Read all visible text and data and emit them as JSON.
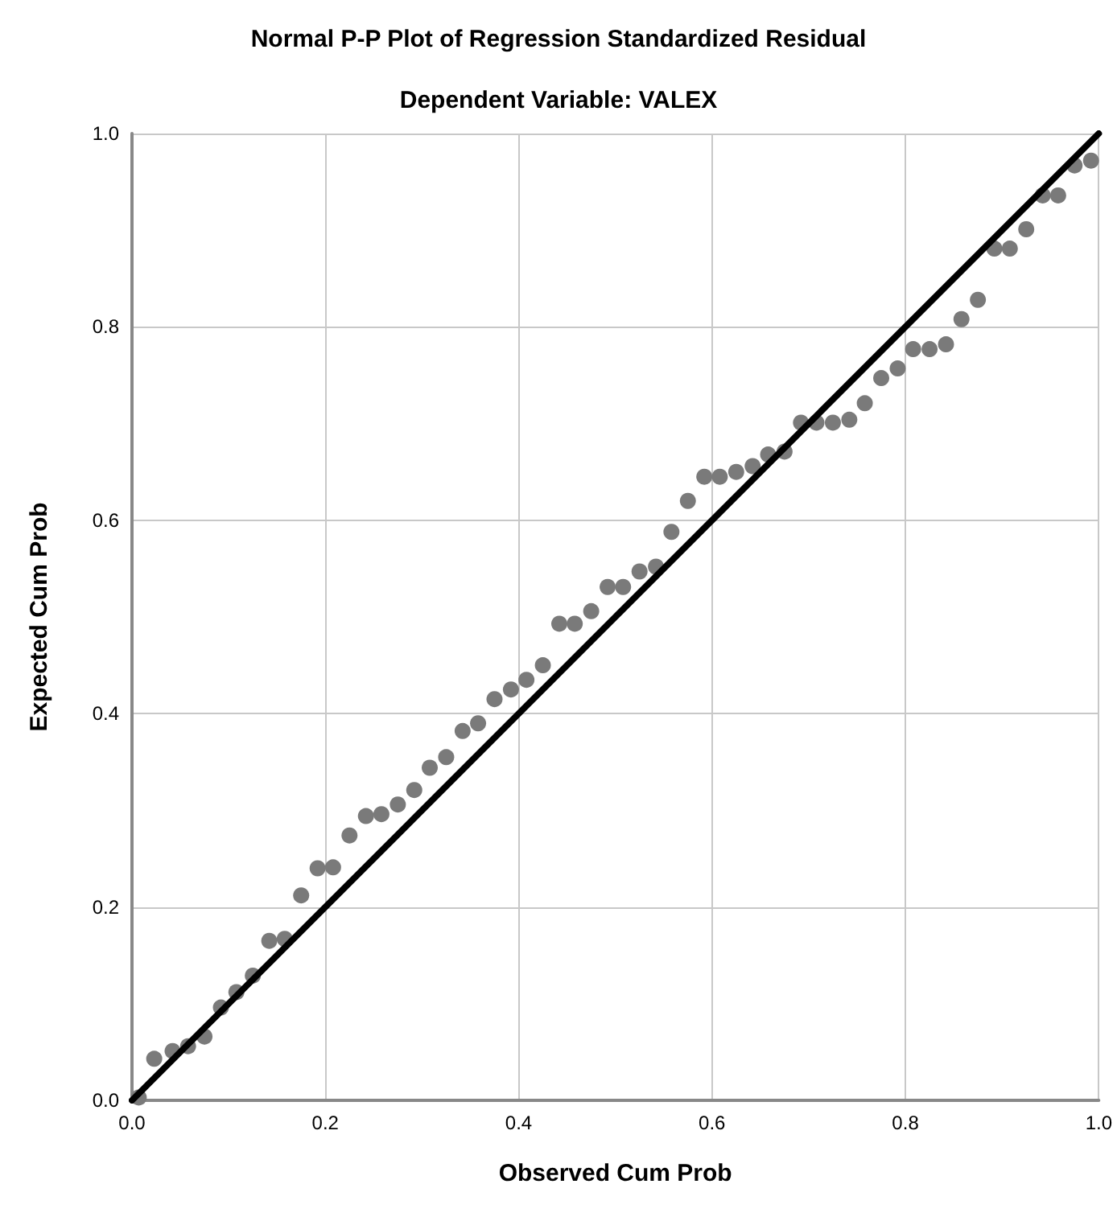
{
  "chart_data": {
    "type": "scatter",
    "title": "Normal P-P Plot of Regression Standardized Residual",
    "subtitle": "Dependent Variable: VALEX",
    "xlabel": "Observed Cum Prob",
    "ylabel": "Expected Cum Prob",
    "xlim": [
      0,
      1
    ],
    "ylim": [
      0,
      1
    ],
    "xticks": [
      {
        "value": 0,
        "label": "0.0"
      },
      {
        "value": 0.2,
        "label": "0.2"
      },
      {
        "value": 0.4,
        "label": "0.4"
      },
      {
        "value": 0.6,
        "label": "0.6"
      },
      {
        "value": 0.8,
        "label": "0.8"
      },
      {
        "value": 1,
        "label": "1.0"
      }
    ],
    "yticks": [
      {
        "value": 0,
        "label": "0.0"
      },
      {
        "value": 0.2,
        "label": "0.2"
      },
      {
        "value": 0.4,
        "label": "0.4"
      },
      {
        "value": 0.6,
        "label": "0.6"
      },
      {
        "value": 0.8,
        "label": "0.8"
      },
      {
        "value": 1,
        "label": "1.0"
      }
    ],
    "grid": true,
    "marker": "circle",
    "series": [
      {
        "color": "#7a7a7a",
        "x": [
          0.007,
          0.023,
          0.042,
          0.058,
          0.075,
          0.092,
          0.108,
          0.125,
          0.142,
          0.158,
          0.175,
          0.192,
          0.208,
          0.225,
          0.242,
          0.258,
          0.275,
          0.292,
          0.308,
          0.325,
          0.342,
          0.358,
          0.375,
          0.392,
          0.408,
          0.425,
          0.442,
          0.458,
          0.475,
          0.492,
          0.508,
          0.525,
          0.542,
          0.558,
          0.575,
          0.592,
          0.608,
          0.625,
          0.642,
          0.658,
          0.675,
          0.692,
          0.708,
          0.725,
          0.742,
          0.758,
          0.775,
          0.792,
          0.808,
          0.825,
          0.842,
          0.858,
          0.875,
          0.892,
          0.908,
          0.925,
          0.942,
          0.958,
          0.975,
          0.992
        ],
        "values": [
          0.003,
          0.043,
          0.051,
          0.056,
          0.066,
          0.096,
          0.112,
          0.129,
          0.165,
          0.167,
          0.212,
          0.24,
          0.241,
          0.274,
          0.294,
          0.296,
          0.306,
          0.321,
          0.344,
          0.355,
          0.382,
          0.39,
          0.415,
          0.425,
          0.435,
          0.45,
          0.493,
          0.493,
          0.506,
          0.531,
          0.531,
          0.547,
          0.552,
          0.588,
          0.62,
          0.645,
          0.645,
          0.65,
          0.656,
          0.668,
          0.671,
          0.701,
          0.701,
          0.701,
          0.704,
          0.721,
          0.747,
          0.757,
          0.777,
          0.777,
          0.782,
          0.808,
          0.828,
          0.881,
          0.881,
          0.901,
          0.936,
          0.936,
          0.967,
          0.972
        ]
      },
      {
        "type": "line",
        "color": "#000000",
        "marker": "none",
        "line_style": "solid",
        "x": [
          0,
          1
        ],
        "values": [
          0,
          1
        ]
      }
    ]
  }
}
